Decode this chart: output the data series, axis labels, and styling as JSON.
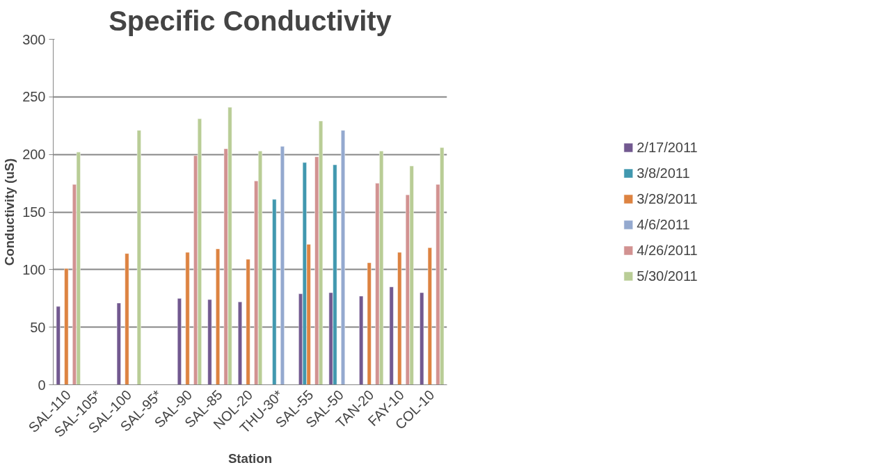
{
  "chart_data": {
    "type": "bar",
    "title": "Specific Conductivity",
    "xlabel": "Station",
    "ylabel": "Conductivity (uS)",
    "categories": [
      "SAL-110",
      "SAL-105*",
      "SAL-100",
      "SAL-95*",
      "SAL-90",
      "SAL-85",
      "NOL-20",
      "THU-30*",
      "SAL-55",
      "SAL-50",
      "TAN-20",
      "FAY-10",
      "COL-10"
    ],
    "series": [
      {
        "name": "2/17/2011",
        "color": "#725990",
        "values": [
          68,
          null,
          71,
          null,
          75,
          74,
          72,
          null,
          79,
          80,
          77,
          85,
          80
        ]
      },
      {
        "name": "3/8/2011",
        "color": "#4198af",
        "values": [
          null,
          null,
          null,
          null,
          null,
          null,
          null,
          161,
          193,
          191,
          null,
          null,
          null
        ]
      },
      {
        "name": "3/28/2011",
        "color": "#dd8341",
        "values": [
          101,
          null,
          114,
          null,
          115,
          118,
          109,
          null,
          122,
          null,
          106,
          115,
          119
        ]
      },
      {
        "name": "4/6/2011",
        "color": "#94a9cf",
        "values": [
          null,
          null,
          null,
          null,
          null,
          null,
          null,
          207,
          null,
          221,
          null,
          null,
          null
        ]
      },
      {
        "name": "4/26/2011",
        "color": "#d29291",
        "values": [
          174,
          null,
          null,
          null,
          199,
          205,
          177,
          null,
          198,
          null,
          175,
          165,
          174
        ]
      },
      {
        "name": "5/30/2011",
        "color": "#b9cd96",
        "values": [
          202,
          null,
          221,
          null,
          231,
          241,
          203,
          null,
          229,
          null,
          203,
          190,
          206
        ]
      }
    ],
    "ylim": [
      0,
      300
    ],
    "yticks": [
      0,
      50,
      100,
      150,
      200,
      250,
      300
    ],
    "grid": "y",
    "legend": "right"
  }
}
